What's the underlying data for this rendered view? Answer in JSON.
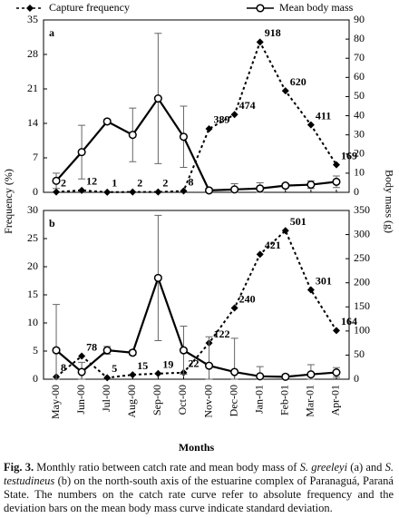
{
  "legend_position": "top",
  "chart_data": [
    {
      "type": "line",
      "panel_label": "a",
      "categories": [
        null,
        null,
        null,
        null,
        null,
        null,
        null,
        null,
        null,
        null,
        null,
        null
      ],
      "ylabel": "Frequency (%)",
      "y2label": "Body mass (g)",
      "ylim": [
        0,
        35
      ],
      "yticks": [
        0,
        7,
        14,
        21,
        28,
        35
      ],
      "y2lim": [
        0,
        90
      ],
      "y2ticks": [
        0,
        10,
        20,
        30,
        40,
        50,
        60,
        70,
        80,
        90
      ],
      "series": [
        {
          "name": "Capture frequency",
          "color": "#000000",
          "line_style": "dashed",
          "marker": "diamond",
          "values": [
            0.07,
            0.4,
            0.03,
            0.07,
            0.07,
            0.27,
            12.9,
            15.8,
            30.5,
            20.6,
            13.7,
            5.6
          ],
          "point_labels": [
            "2",
            "12",
            "1",
            "2",
            "2",
            "8",
            "389",
            "474",
            "918",
            "620",
            "411",
            "169"
          ]
        },
        {
          "name": "Mean body mass",
          "color": "#000000",
          "line_style": "solid",
          "marker": "circle",
          "axis": "y2",
          "values": [
            6,
            21,
            37,
            30,
            49,
            29,
            1,
            1.5,
            2,
            3.5,
            4,
            5.5
          ],
          "errors": [
            4,
            14,
            1,
            14,
            34,
            16,
            1,
            3,
            3,
            1,
            2,
            3
          ]
        }
      ]
    },
    {
      "type": "line",
      "panel_label": "b",
      "categories": [
        "May-00",
        "Jun-00",
        "Jul-00",
        "Aug-00",
        "Sep-00",
        "Oct-00",
        "Nov-00",
        "Dec-00",
        "Jan-01",
        "Feb-01",
        "Mar-01",
        "Apr-01"
      ],
      "xlabel": "Months",
      "ylim": [
        0,
        30
      ],
      "yticks": [
        0,
        5,
        10,
        15,
        20,
        25,
        30
      ],
      "y2lim": [
        0,
        350
      ],
      "y2ticks": [
        0,
        50,
        100,
        150,
        200,
        250,
        300,
        350
      ],
      "series": [
        {
          "color": "#000000",
          "line_style": "dashed",
          "marker": "diamond",
          "values": [
            0.42,
            4.11,
            0.26,
            0.79,
            1.0,
            1.16,
            6.43,
            12.66,
            22.2,
            26.42,
            15.88,
            8.65
          ],
          "point_labels": [
            "8",
            "78",
            "5",
            "15",
            "19",
            "22",
            "122",
            "240",
            "421",
            "501",
            "301",
            "164"
          ]
        },
        {
          "color": "#000000",
          "line_style": "solid",
          "marker": "circle",
          "axis": "y2",
          "values": [
            60,
            15,
            60,
            55,
            210,
            60,
            28,
            15,
            6,
            5,
            10,
            14
          ],
          "errors": [
            95,
            20,
            8,
            5,
            130,
            50,
            60,
            70,
            20,
            5,
            20,
            10
          ]
        }
      ]
    }
  ],
  "caption": [
    {
      "text": "Fig. 3.",
      "bold": true
    },
    {
      "text": " Monthly ratio between catch rate and mean body mass of "
    },
    {
      "text": "S. greeleyi",
      "italic": true
    },
    {
      "text": " (a) and "
    },
    {
      "text": "S. testudineus",
      "italic": true
    },
    {
      "text": " (b) on the north-south axis of the estuarine complex of Paranaguá, Paraná State. The numbers on the catch rate curve refer to absolute frequency and the deviation bars on the mean body mass curve indicate standard deviation."
    }
  ]
}
